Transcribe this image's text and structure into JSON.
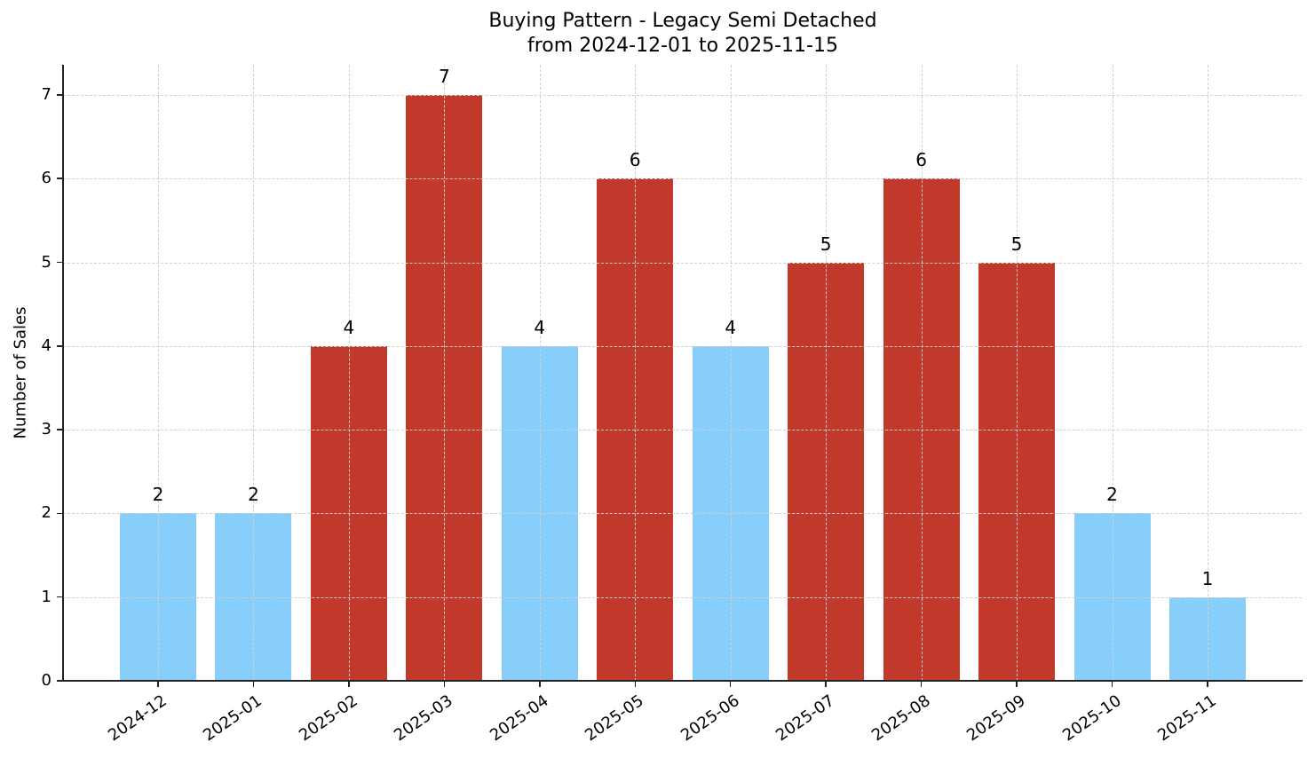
{
  "chart_data": {
    "type": "bar",
    "title": "Buying Pattern - Legacy Semi Detached",
    "subtitle": "from 2024-12-01 to 2025-11-15",
    "xlabel": "",
    "ylabel": "Number of Sales",
    "ylim": [
      0,
      7.35
    ],
    "yticks": [
      0,
      1,
      2,
      3,
      4,
      5,
      6,
      7
    ],
    "grid": true,
    "legend": null,
    "categories": [
      "2024-12",
      "2025-01",
      "2025-02",
      "2025-03",
      "2025-04",
      "2025-05",
      "2025-06",
      "2025-07",
      "2025-08",
      "2025-09",
      "2025-10",
      "2025-11"
    ],
    "values": [
      2,
      2,
      4,
      7,
      4,
      6,
      4,
      5,
      6,
      5,
      2,
      1
    ],
    "bar_colors": [
      "#87cefa",
      "#87cefa",
      "#c0392b",
      "#c0392b",
      "#87cefa",
      "#c0392b",
      "#87cefa",
      "#c0392b",
      "#c0392b",
      "#c0392b",
      "#87cefa",
      "#87cefa"
    ],
    "value_labels": [
      "2",
      "2",
      "4",
      "7",
      "4",
      "6",
      "4",
      "5",
      "6",
      "5",
      "2",
      "1"
    ]
  },
  "colors": {
    "high": "#c0392b",
    "low": "#87cefa"
  }
}
